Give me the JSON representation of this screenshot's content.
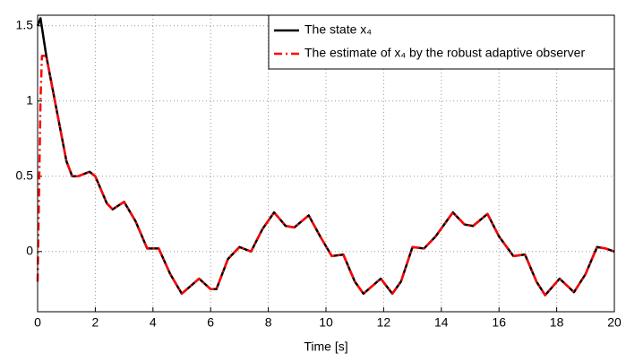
{
  "chart_data": {
    "type": "line",
    "xlabel": "Time [s]",
    "xlim": [
      0,
      20
    ],
    "xticks": [
      0,
      2,
      4,
      6,
      8,
      10,
      12,
      14,
      16,
      18,
      20
    ],
    "ylim": [
      -0.4,
      1.57
    ],
    "yticks": [
      0,
      0.5,
      1,
      1.5
    ],
    "grid": true,
    "legend": "upper right",
    "series": [
      {
        "name": "The state x₄",
        "color": "#000000",
        "style": "solid",
        "x": [
          0,
          0.1,
          0.3,
          0.5,
          0.8,
          1.0,
          1.2,
          1.4,
          1.8,
          2.0,
          2.4,
          2.6,
          3.0,
          3.4,
          3.8,
          4.2,
          4.6,
          5.0,
          5.3,
          5.6,
          6.0,
          6.2,
          6.6,
          7.0,
          7.4,
          7.8,
          8.2,
          8.6,
          8.9,
          9.4,
          9.8,
          10.2,
          10.6,
          11.0,
          11.3,
          11.9,
          12.3,
          12.6,
          13.0,
          13.4,
          13.8,
          14.4,
          14.8,
          15.1,
          15.6,
          16.0,
          16.5,
          16.9,
          17.3,
          17.6,
          18.1,
          18.6,
          19.0,
          19.4,
          19.7,
          20.0
        ],
        "values": [
          1.5,
          1.55,
          1.3,
          1.1,
          0.8,
          0.6,
          0.5,
          0.5,
          0.53,
          0.5,
          0.32,
          0.28,
          0.33,
          0.2,
          0.02,
          0.02,
          -0.15,
          -0.28,
          -0.23,
          -0.18,
          -0.25,
          -0.25,
          -0.05,
          0.03,
          0.0,
          0.15,
          0.26,
          0.17,
          0.16,
          0.24,
          0.1,
          -0.03,
          -0.02,
          -0.2,
          -0.28,
          -0.18,
          -0.28,
          -0.2,
          0.03,
          0.02,
          0.1,
          0.26,
          0.18,
          0.17,
          0.25,
          0.1,
          -0.03,
          -0.02,
          -0.2,
          -0.29,
          -0.18,
          -0.27,
          -0.15,
          0.03,
          0.02,
          0.0
        ]
      },
      {
        "name": "The estimate of x₄ by the robust adaptive observer",
        "color": "#ff0000",
        "style": "dashdot",
        "x": [
          0,
          0.05,
          0.1,
          0.15,
          0.3,
          0.5,
          0.8,
          1.0,
          1.2,
          1.4,
          1.8,
          2.0,
          2.4,
          2.6,
          3.0,
          3.4,
          3.8,
          4.2,
          4.6,
          5.0,
          5.3,
          5.6,
          6.0,
          6.2,
          6.6,
          7.0,
          7.4,
          7.8,
          8.2,
          8.6,
          8.9,
          9.4,
          9.8,
          10.2,
          10.6,
          11.0,
          11.3,
          11.9,
          12.3,
          12.6,
          13.0,
          13.4,
          13.8,
          14.4,
          14.8,
          15.1,
          15.6,
          16.0,
          16.5,
          16.9,
          17.3,
          17.6,
          18.1,
          18.6,
          19.0,
          19.4,
          19.7,
          20.0
        ],
        "values": [
          -0.2,
          0.4,
          1.0,
          1.3,
          1.3,
          1.1,
          0.8,
          0.6,
          0.5,
          0.5,
          0.53,
          0.5,
          0.32,
          0.28,
          0.33,
          0.2,
          0.02,
          0.02,
          -0.15,
          -0.28,
          -0.23,
          -0.18,
          -0.25,
          -0.25,
          -0.05,
          0.03,
          0.0,
          0.15,
          0.26,
          0.17,
          0.16,
          0.24,
          0.1,
          -0.03,
          -0.02,
          -0.2,
          -0.28,
          -0.18,
          -0.28,
          -0.2,
          0.03,
          0.02,
          0.1,
          0.26,
          0.18,
          0.17,
          0.25,
          0.1,
          -0.03,
          -0.02,
          -0.2,
          -0.29,
          -0.18,
          -0.27,
          -0.15,
          0.03,
          0.02,
          0.0
        ]
      }
    ]
  }
}
